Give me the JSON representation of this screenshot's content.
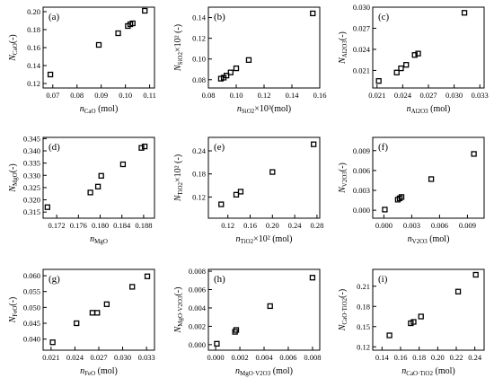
{
  "chart_data": [
    {
      "panel": "(a)",
      "type": "scatter",
      "ylabel_main": "N",
      "ylabel_sub": "CaO",
      "ylabel_unit": "(-)",
      "xlabel_main": "n",
      "xlabel_sub": "CaO",
      "xlabel_unit": " (mol)",
      "xlim": [
        0.066,
        0.112
      ],
      "ylim": [
        0.115,
        0.205
      ],
      "xticks": [
        0.07,
        0.08,
        0.09,
        0.1,
        0.11
      ],
      "xtick_labels": [
        "0.07",
        "0.08",
        "0.09",
        "0.10",
        "0.11"
      ],
      "yticks": [
        0.12,
        0.14,
        0.16,
        0.18,
        0.2
      ],
      "ytick_labels": [
        "0.12",
        "0.14",
        "0.16",
        "0.18",
        "0.20"
      ],
      "x": [
        0.069,
        0.089,
        0.097,
        0.101,
        0.102,
        0.103,
        0.108
      ],
      "y": [
        0.13,
        0.163,
        0.176,
        0.184,
        0.186,
        0.187,
        0.201
      ]
    },
    {
      "panel": "(b)",
      "type": "scatter",
      "ylabel_main": "N",
      "ylabel_sub": "SiO2",
      "ylabel_unit": "×10² (-)",
      "xlabel_main": "n",
      "xlabel_sub": "SiO2",
      "xlabel_unit": "×10³(mol)",
      "xlim": [
        0.08,
        0.16
      ],
      "ylim": [
        0.072,
        0.15
      ],
      "xticks": [
        0.08,
        0.1,
        0.12,
        0.14,
        0.16
      ],
      "xtick_labels": [
        "0.08",
        "0.10",
        "0.12",
        "0.14",
        "0.16"
      ],
      "yticks": [
        0.08,
        0.1,
        0.12,
        0.14
      ],
      "ytick_labels": [
        "0.08",
        "0.10",
        "0.12",
        "0.14"
      ],
      "x": [
        0.089,
        0.091,
        0.093,
        0.096,
        0.1,
        0.109,
        0.155
      ],
      "y": [
        0.081,
        0.082,
        0.084,
        0.087,
        0.091,
        0.099,
        0.144
      ]
    },
    {
      "panel": "(c)",
      "type": "scatter",
      "ylabel_main": "N",
      "ylabel_sub": "Al2O3",
      "ylabel_unit": "(-)",
      "xlabel_main": "n",
      "xlabel_sub": "Al2O3",
      "xlabel_unit": " (mol)",
      "xlim": [
        0.0205,
        0.0335
      ],
      "ylim": [
        0.0185,
        0.03
      ],
      "xticks": [
        0.021,
        0.024,
        0.027,
        0.03,
        0.033
      ],
      "xtick_labels": [
        "0.021",
        "0.024",
        "0.027",
        "0.030",
        "0.033"
      ],
      "yticks": [
        0.021,
        0.024,
        0.027,
        0.03
      ],
      "ytick_labels": [
        "0.021",
        "0.024",
        "0.027",
        "0.030"
      ],
      "x": [
        0.0212,
        0.0233,
        0.0238,
        0.0244,
        0.0254,
        0.0258,
        0.0312
      ],
      "y": [
        0.0195,
        0.0207,
        0.0213,
        0.0218,
        0.0232,
        0.0234,
        0.0292
      ]
    },
    {
      "panel": "(d)",
      "type": "scatter",
      "ylabel_main": "N",
      "ylabel_sub": "MgO",
      "ylabel_unit": "(-)",
      "xlabel_main": "n",
      "xlabel_sub": "MgO",
      "xlabel_unit": "",
      "xlim": [
        0.1695,
        0.19
      ],
      "ylim": [
        0.3125,
        0.3455
      ],
      "xticks": [
        0.172,
        0.176,
        0.18,
        0.184,
        0.188
      ],
      "xtick_labels": [
        "0.172",
        "0.176",
        "0.180",
        "0.184",
        "0.188"
      ],
      "yticks": [
        0.315,
        0.32,
        0.325,
        0.33,
        0.335,
        0.34,
        0.345
      ],
      "ytick_labels": [
        "0.315",
        "0.320",
        "0.325",
        "0.330",
        "0.335",
        "0.340",
        "0.345"
      ],
      "x": [
        0.1703,
        0.1782,
        0.1796,
        0.1802,
        0.1842,
        0.1876,
        0.1882
      ],
      "y": [
        0.317,
        0.323,
        0.3254,
        0.3298,
        0.3345,
        0.3412,
        0.3418
      ]
    },
    {
      "panel": "(e)",
      "type": "scatter",
      "ylabel_main": "N",
      "ylabel_sub": "TiO2",
      "ylabel_unit": "×10² (-)",
      "xlabel_main": "n",
      "xlabel_sub": "TiO2",
      "xlabel_unit": "×10² (mol)",
      "xlim": [
        0.085,
        0.285
      ],
      "ylim": [
        0.065,
        0.275
      ],
      "xticks": [
        0.12,
        0.16,
        0.2,
        0.24,
        0.28
      ],
      "xtick_labels": [
        "0.12",
        "0.16",
        "0.20",
        "0.24",
        "0.28"
      ],
      "yticks": [
        0.12,
        0.18,
        0.24
      ],
      "ytick_labels": [
        "0.12",
        "0.18",
        "0.24"
      ],
      "x": [
        0.108,
        0.135,
        0.143,
        0.2,
        0.274
      ],
      "y": [
        0.101,
        0.126,
        0.134,
        0.185,
        0.257
      ]
    },
    {
      "panel": "(f)",
      "type": "scatter",
      "ylabel_main": "N",
      "ylabel_sub": "V2O3",
      "ylabel_unit": "(-)",
      "xlabel_main": "n",
      "xlabel_sub": "V2O3",
      "xlabel_unit": " (mol)",
      "xlim": [
        -0.0012,
        0.0108
      ],
      "ylim": [
        -0.0012,
        0.011
      ],
      "xticks": [
        0.0,
        0.003,
        0.006,
        0.009
      ],
      "xtick_labels": [
        "0.000",
        "0.003",
        "0.006",
        "0.009"
      ],
      "yticks": [
        0.0,
        0.003,
        0.006,
        0.009
      ],
      "ytick_labels": [
        "0.000",
        "0.003",
        "0.006",
        "0.009"
      ],
      "x": [
        0.0001,
        0.0015,
        0.0017,
        0.0019,
        0.0051,
        0.0097
      ],
      "y": [
        0.0001,
        0.0016,
        0.0018,
        0.002,
        0.0047,
        0.0085
      ]
    },
    {
      "panel": "(g)",
      "type": "scatter",
      "ylabel_main": "N",
      "ylabel_sub": "FeO",
      "ylabel_unit": "(-)",
      "xlabel_main": "n",
      "xlabel_sub": "FeO",
      "xlabel_unit": " (mol)",
      "xlim": [
        0.02,
        0.034
      ],
      "ylim": [
        0.0365,
        0.062
      ],
      "xticks": [
        0.021,
        0.024,
        0.027,
        0.03,
        0.033
      ],
      "xtick_labels": [
        "0.021",
        "0.024",
        "0.027",
        "0.030",
        "0.033"
      ],
      "yticks": [
        0.04,
        0.045,
        0.05,
        0.055,
        0.06
      ],
      "ytick_labels": [
        "0.040",
        "0.045",
        "0.050",
        "0.055",
        "0.060"
      ],
      "x": [
        0.0212,
        0.0242,
        0.0262,
        0.0268,
        0.028,
        0.0312,
        0.0331
      ],
      "y": [
        0.039,
        0.045,
        0.0483,
        0.0483,
        0.051,
        0.0565,
        0.0598
      ]
    },
    {
      "panel": "(h)",
      "type": "scatter",
      "ylabel_main": "N",
      "ylabel_sub": "MgO·V2O3",
      "ylabel_unit": "(-)",
      "xlabel_main": "n",
      "xlabel_sub": "MgO·V2O3",
      "xlabel_unit": " (mol)",
      "xlim": [
        -0.0006,
        0.0086
      ],
      "ylim": [
        -0.0006,
        0.0082
      ],
      "xticks": [
        0.0,
        0.002,
        0.004,
        0.006,
        0.008
      ],
      "xtick_labels": [
        "0.000",
        "0.002",
        "0.004",
        "0.006",
        "0.008"
      ],
      "yticks": [
        0.0,
        0.002,
        0.004,
        0.006,
        0.008
      ],
      "ytick_labels": [
        "0.000",
        "0.002",
        "0.004",
        "0.006",
        "0.008"
      ],
      "x": [
        0.0001,
        0.0016,
        0.0017,
        0.0045,
        0.008
      ],
      "y": [
        0.0001,
        0.0014,
        0.0016,
        0.0042,
        0.0073
      ]
    },
    {
      "panel": "(i)",
      "type": "scatter",
      "ylabel_main": "N",
      "ylabel_sub": "CaO·TiO2",
      "ylabel_unit": "(-)",
      "xlabel_main": "n",
      "xlabel_sub": "CaO·TiO2",
      "xlabel_unit": " (mol)",
      "xlim": [
        0.13,
        0.25
      ],
      "ylim": [
        0.115,
        0.235
      ],
      "xticks": [
        0.14,
        0.16,
        0.18,
        0.2,
        0.22,
        0.24
      ],
      "xtick_labels": [
        "0.14",
        "0.16",
        "0.18",
        "0.20",
        "0.22",
        "0.24"
      ],
      "yticks": [
        0.12,
        0.15,
        0.18,
        0.21
      ],
      "ytick_labels": [
        "0.12",
        "0.15",
        "0.18",
        "0.21"
      ],
      "x": [
        0.148,
        0.171,
        0.174,
        0.182,
        0.222,
        0.241
      ],
      "y": [
        0.137,
        0.155,
        0.157,
        0.165,
        0.202,
        0.227
      ]
    }
  ]
}
